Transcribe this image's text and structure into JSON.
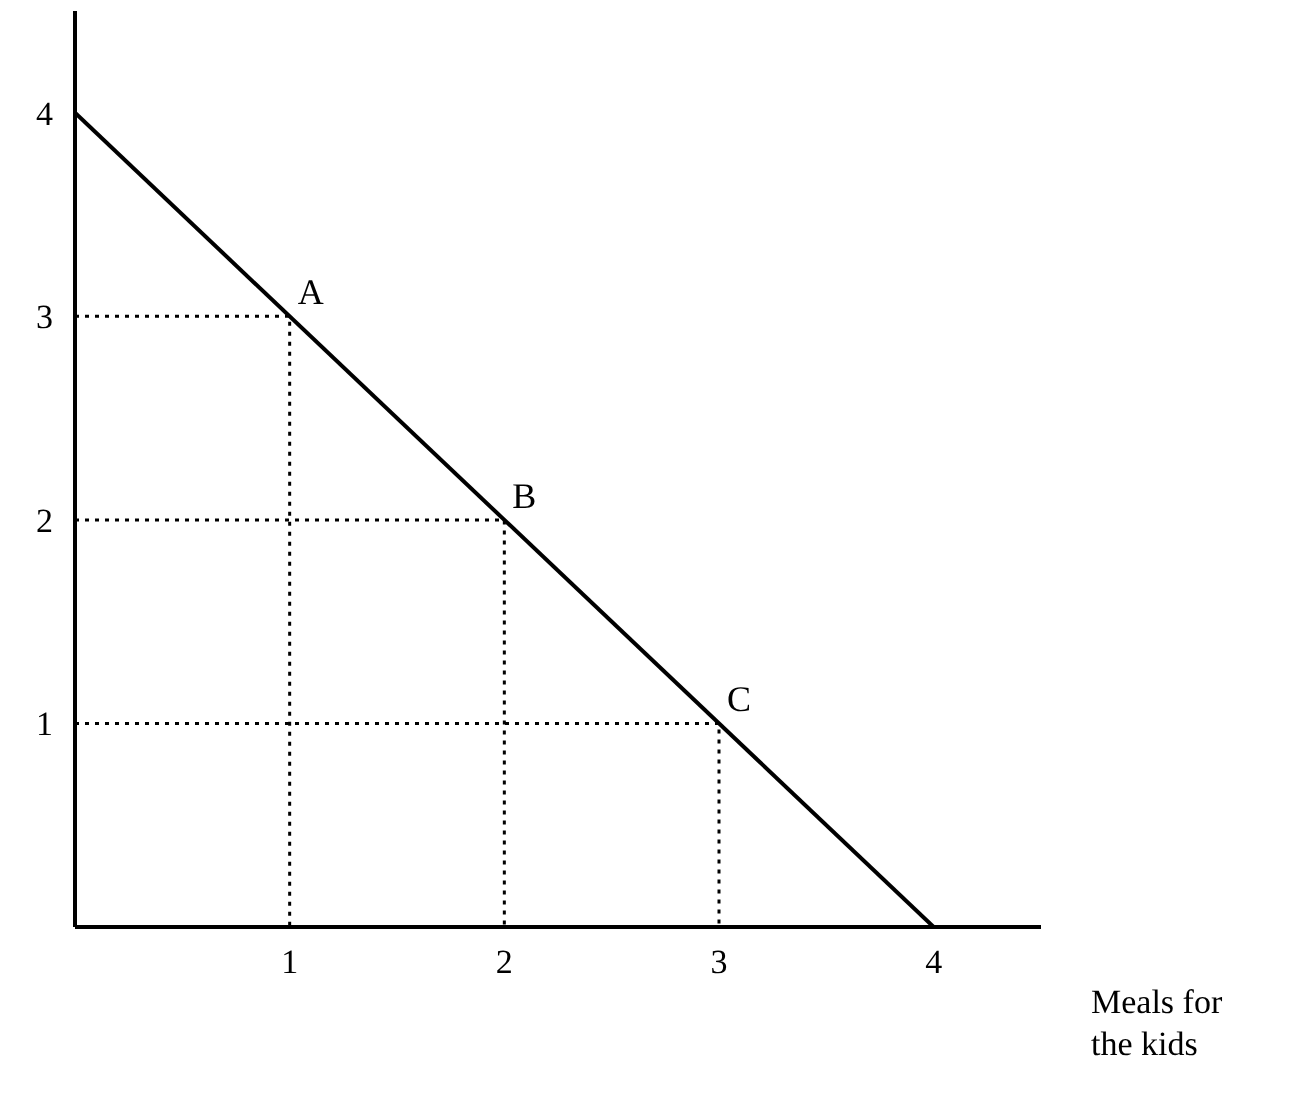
{
  "chart_data": {
    "type": "line",
    "xlabel": "Meals for the kids",
    "xlim": [
      0,
      4.5
    ],
    "ylim": [
      0,
      4.5
    ],
    "xticks": [
      1,
      2,
      3,
      4
    ],
    "yticks": [
      1,
      2,
      3,
      4
    ],
    "grid": false,
    "marker": "none",
    "series": [
      {
        "color": "#000000",
        "x": [
          0,
          4
        ],
        "values": [
          4,
          0
        ],
        "line_style": "solid"
      },
      {
        "color": "#000000",
        "x": [
          0,
          1,
          1
        ],
        "values": [
          3,
          3,
          0
        ],
        "line_style": "dotted"
      },
      {
        "color": "#000000",
        "x": [
          0,
          2,
          2
        ],
        "values": [
          2,
          2,
          0
        ],
        "line_style": "dotted"
      },
      {
        "color": "#000000",
        "x": [
          0,
          3,
          3
        ],
        "values": [
          1,
          1,
          0
        ],
        "line_style": "dotted"
      }
    ],
    "annotations": [
      {
        "text": "A",
        "x": 1,
        "y": 3
      },
      {
        "text": "B",
        "x": 2,
        "y": 2
      },
      {
        "text": "C",
        "x": 3,
        "y": 1
      }
    ]
  }
}
